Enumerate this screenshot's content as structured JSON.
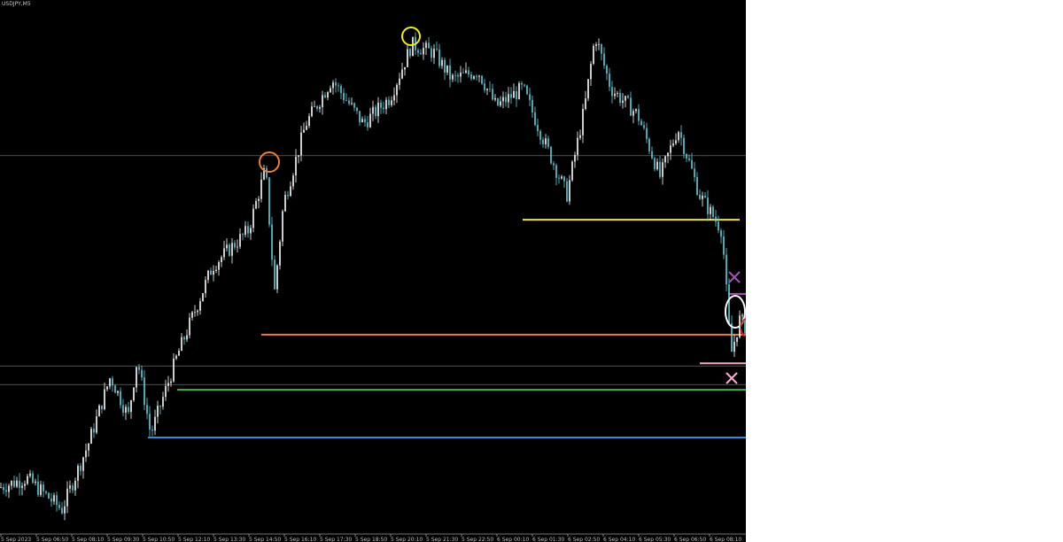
{
  "chart_data": {
    "type": "candlestick",
    "title": "USDJPY,M5",
    "x_tick_labels": [
      "5 Sep 2023",
      "5 Sep 06:50",
      "5 Sep 08:10",
      "5 Sep 09:30",
      "5 Sep 10:50",
      "5 Sep 12:10",
      "5 Sep 13:30",
      "5 Sep 14:50",
      "5 Sep 16:10",
      "5 Sep 17:30",
      "5 Sep 18:50",
      "5 Sep 20:10",
      "5 Sep 21:30",
      "5 Sep 22:50",
      "6 Sep 00:10",
      "6 Sep 01:30",
      "6 Sep 02:50",
      "6 Sep 04:10",
      "6 Sep 05:30",
      "6 Sep 06:50",
      "6 Sep 08:10"
    ],
    "price_axis_visible": false,
    "grid": false,
    "candle_colors": {
      "up": "#ffffff",
      "down": "#5fd3e0"
    },
    "relative_price_path": [
      [
        0,
        8
      ],
      [
        3.6,
        9.7
      ],
      [
        8.3,
        3.8
      ],
      [
        11.9,
        16.4
      ],
      [
        14.8,
        28.9
      ],
      [
        17.2,
        21.4
      ],
      [
        18.4,
        32.3
      ],
      [
        20.2,
        18
      ],
      [
        23.8,
        33
      ],
      [
        28.5,
        49.8
      ],
      [
        33.3,
        56.5
      ],
      [
        35.6,
        68.2
      ],
      [
        36.8,
        44.8
      ],
      [
        38,
        61.5
      ],
      [
        41,
        76.6
      ],
      [
        44.5,
        85
      ],
      [
        48.7,
        76.6
      ],
      [
        52.3,
        81.6
      ],
      [
        55.2,
        91.6
      ],
      [
        58.2,
        90
      ],
      [
        60.6,
        85
      ],
      [
        64.1,
        86.6
      ],
      [
        66.5,
        79.9
      ],
      [
        70.1,
        83.3
      ],
      [
        73,
        73.2
      ],
      [
        76,
        63.2
      ],
      [
        78.4,
        79.9
      ],
      [
        79.8,
        93.3
      ],
      [
        81.9,
        83.3
      ],
      [
        85.5,
        78.3
      ],
      [
        88.5,
        66.6
      ],
      [
        90.9,
        75.8
      ],
      [
        93.8,
        63.2
      ],
      [
        96.8,
        56.5
      ],
      [
        98,
        33
      ],
      [
        99.2,
        39.8
      ],
      [
        100,
        38.1
      ]
    ],
    "levels": [
      {
        "color": "#808080",
        "level": 70.6
      },
      {
        "color": "#808080",
        "level": 30.9
      },
      {
        "color": "#808080",
        "level": 27.4
      },
      {
        "color": "#f0e03a",
        "level": 58.5
      },
      {
        "color": "#f07a30",
        "level": 36.8
      },
      {
        "color": "#3cb44a",
        "level": 26.4
      },
      {
        "color": "#2a8fe0",
        "level": 17.4
      },
      {
        "color": "#f4a6c8",
        "level": 31.4
      },
      {
        "color": "#b050c0",
        "level": 44.5
      }
    ],
    "markers": [
      {
        "shape": "circle",
        "color": "#f08030"
      },
      {
        "shape": "circle",
        "color": "#f0f000"
      },
      {
        "shape": "ellipse",
        "color": "#ffffff"
      },
      {
        "shape": "circle",
        "color": "#e02020"
      },
      {
        "shape": "x",
        "color": "#a050b0"
      },
      {
        "shape": "x",
        "color": "#f4a6c8"
      }
    ]
  }
}
